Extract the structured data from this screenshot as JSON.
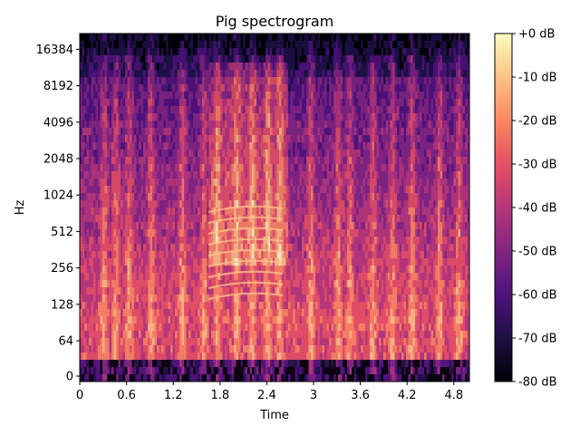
{
  "chart_data": {
    "type": "heatmap",
    "title": "Pig spectrogram",
    "xlabel": "Time",
    "ylabel": "Hz",
    "x_ticks": [
      "0",
      "0.6",
      "1.2",
      "1.8",
      "2.4",
      "3",
      "3.6",
      "4.2",
      "4.8"
    ],
    "x_tick_values": [
      0,
      0.6,
      1.2,
      1.8,
      2.4,
      3.0,
      3.6,
      4.2,
      4.8
    ],
    "xlim": [
      0,
      5.0
    ],
    "y_scale": "symlog",
    "y_ticks": [
      "0",
      "64",
      "128",
      "256",
      "512",
      "1024",
      "2048",
      "4096",
      "8192",
      "16384"
    ],
    "y_tick_values": [
      0,
      64,
      128,
      256,
      512,
      1024,
      2048,
      4096,
      8192,
      16384
    ],
    "ylim": [
      0,
      22050
    ],
    "colormap": "magma",
    "colorbar": {
      "ticks": [
        "+0 dB",
        "-10 dB",
        "-20 dB",
        "-30 dB",
        "-40 dB",
        "-50 dB",
        "-60 dB",
        "-70 dB",
        "-80 dB"
      ],
      "tick_values": [
        0,
        -10,
        -20,
        -30,
        -40,
        -50,
        -60,
        -70,
        -80
      ],
      "range": [
        -80,
        0
      ]
    },
    "bright_time_bands": [
      0.3,
      0.45,
      0.62,
      0.9,
      1.3,
      1.58,
      1.75,
      2.0,
      2.2,
      2.4,
      2.55,
      2.95,
      3.3,
      3.45,
      3.75,
      4.0,
      4.25,
      4.6,
      4.85
    ],
    "grid": false
  }
}
